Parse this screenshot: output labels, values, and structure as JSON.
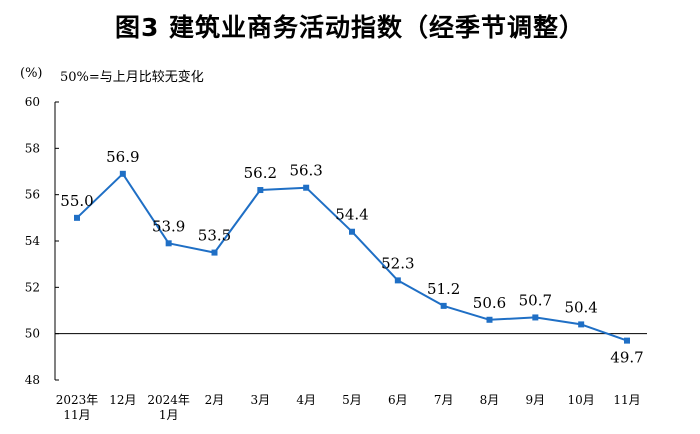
{
  "title": "图3  建筑业商务活动指数（经季节调整）",
  "unit_label": "(%)",
  "note": "50%=与上月比较无变化",
  "colors": {
    "line": "#1f6fc5",
    "marker": "#1f6fc5",
    "reference_line": "#000000",
    "axis": "#000000"
  },
  "chart_data": {
    "type": "line",
    "title": "图3  建筑业商务活动指数（经季节调整）",
    "ylabel": "(%)",
    "xlabel": "",
    "ylim": [
      48,
      60
    ],
    "yticks": [
      "48",
      "50",
      "52",
      "54",
      "56",
      "58",
      "60"
    ],
    "reference_value": 50,
    "grid": false,
    "legend": "none",
    "categories": [
      [
        "2023年",
        "11月"
      ],
      [
        "12月"
      ],
      [
        "2024年",
        "1月"
      ],
      [
        "2月"
      ],
      [
        "3月"
      ],
      [
        "4月"
      ],
      [
        "5月"
      ],
      [
        "6月"
      ],
      [
        "7月"
      ],
      [
        "8月"
      ],
      [
        "9月"
      ],
      [
        "10月"
      ],
      [
        "11月"
      ]
    ],
    "values": [
      55.0,
      56.9,
      53.9,
      53.5,
      56.2,
      56.3,
      54.4,
      52.3,
      51.2,
      50.6,
      50.7,
      50.4,
      49.7
    ],
    "data_labels": [
      "55.0",
      "56.9",
      "53.9",
      "53.5",
      "56.2",
      "56.3",
      "54.4",
      "52.3",
      "51.2",
      "50.6",
      "50.7",
      "50.4",
      "49.7"
    ]
  }
}
